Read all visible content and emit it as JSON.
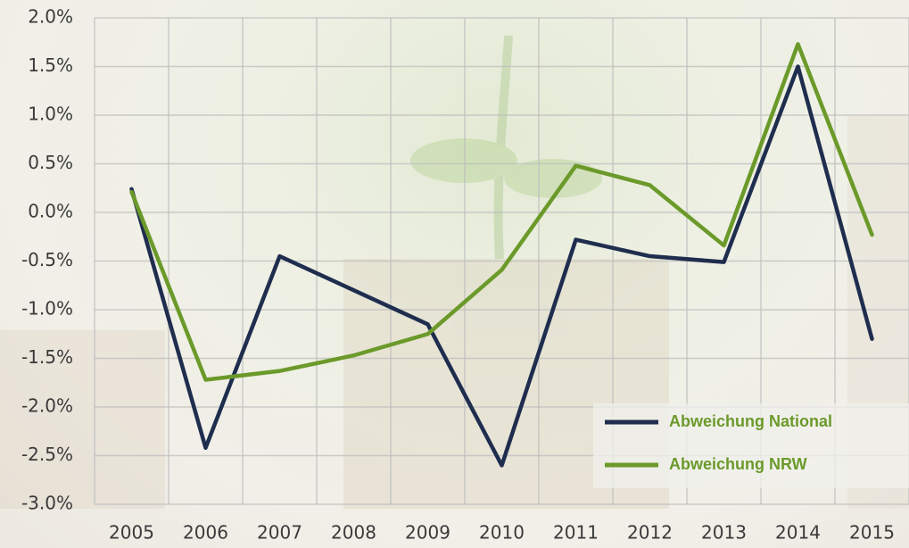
{
  "chart_data": {
    "type": "line",
    "categories": [
      "2005",
      "2006",
      "2007",
      "2008",
      "2009",
      "2010",
      "2011",
      "2012",
      "2013",
      "2014",
      "2015"
    ],
    "series": [
      {
        "name": "Abweichung National",
        "color": "#1f2d4e",
        "values": [
          0.24,
          -2.42,
          -0.45,
          -0.8,
          -1.15,
          -2.6,
          -0.28,
          -0.45,
          -0.51,
          1.5,
          -1.3
        ]
      },
      {
        "name": "Abweichung NRW",
        "color": "#6b9a2a",
        "values": [
          0.21,
          -1.72,
          -1.63,
          -1.47,
          -1.25,
          -0.59,
          0.48,
          0.28,
          -0.34,
          1.73,
          -0.23
        ]
      }
    ],
    "ylim": [
      -3,
      2
    ],
    "yticks": [
      {
        "value": -3,
        "label": "-3.0%"
      },
      {
        "value": -2.5,
        "label": "-2.5%"
      },
      {
        "value": -2,
        "label": "-2.0%"
      },
      {
        "value": -1.5,
        "label": "-1.5%"
      },
      {
        "value": -1,
        "label": "-1.0%"
      },
      {
        "value": -0.5,
        "label": "-0.5%"
      },
      {
        "value": 0,
        "label": "0.0%"
      },
      {
        "value": 0.5,
        "label": "0.5%"
      },
      {
        "value": 1,
        "label": "1.0%"
      },
      {
        "value": 1.5,
        "label": "1.5%"
      },
      {
        "value": 2,
        "label": "2.0%"
      }
    ],
    "grid": true
  }
}
